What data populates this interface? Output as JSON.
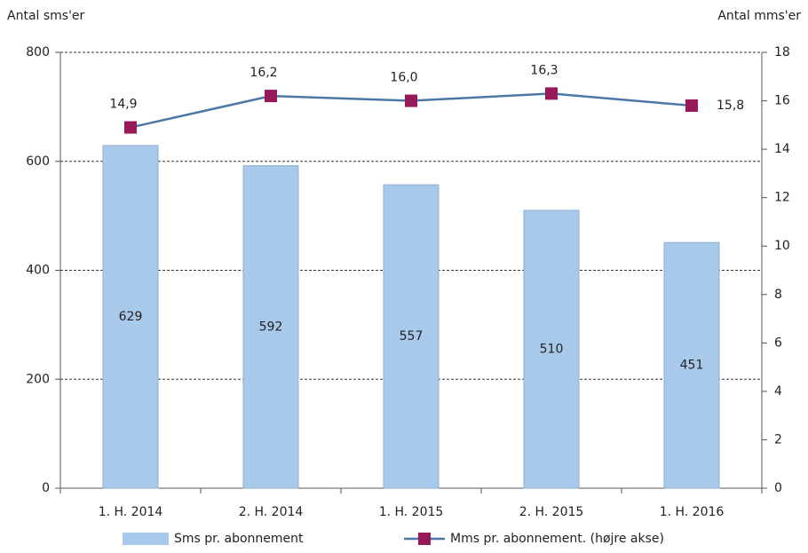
{
  "chart_data": {
    "type": "bar",
    "y_label": "Antal sms'er",
    "y2_label": "Antal mms'er",
    "categories": [
      "1. H. 2014",
      "2. H. 2014",
      "1. H. 2015",
      "2. H. 2015",
      "1. H. 2016"
    ],
    "series": [
      {
        "name": "Sms pr. abonnement",
        "type": "bar",
        "color": "#a9c9ea",
        "values": [
          629,
          592,
          557,
          510,
          451
        ]
      },
      {
        "name": "Mms pr. abonnement. (højre akse)",
        "type": "line",
        "axis": "y2",
        "color": "#4a78a6",
        "marker_color": "#98195a",
        "values": [
          14.9,
          16.2,
          16.0,
          16.3,
          15.8
        ],
        "value_labels": [
          "14,9",
          "16,2",
          "16,0",
          "16,3",
          "15,8"
        ]
      }
    ],
    "ylim": [
      0,
      800
    ],
    "yticks": [
      0,
      200,
      400,
      600,
      800
    ],
    "y2lim": [
      0,
      18
    ],
    "y2ticks": [
      0,
      2,
      4,
      6,
      8,
      10,
      12,
      14,
      16,
      18
    ],
    "grid": true,
    "legend": "bottom"
  }
}
